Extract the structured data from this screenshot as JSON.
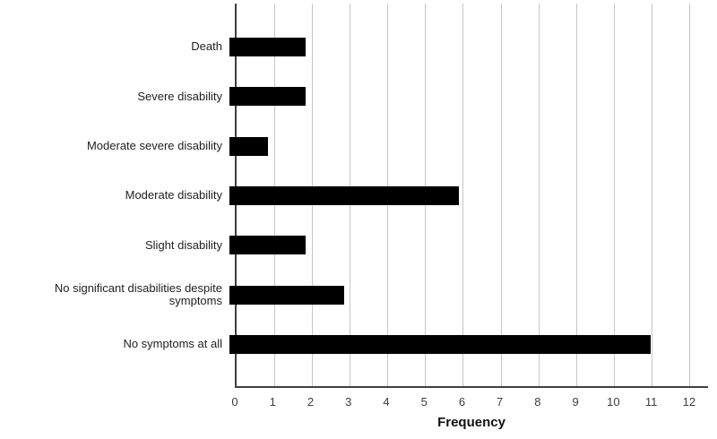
{
  "chart_data": {
    "type": "bar",
    "orientation": "horizontal",
    "title": "",
    "xlabel": "Frequency",
    "ylabel": "",
    "categories": [
      "Death",
      "Severe disability",
      "Moderate severe disability",
      "Moderate disability",
      "Slight disability",
      "No significant disabilities despite symptoms",
      "No symptoms at all"
    ],
    "values": [
      2,
      2,
      1,
      6,
      2,
      3,
      11
    ],
    "xticks": [
      0,
      1,
      2,
      3,
      4,
      5,
      6,
      7,
      8,
      9,
      10,
      11,
      12
    ],
    "xlim": [
      0,
      12.5
    ],
    "grid": "vertical-gridlines-at-each-tick",
    "legend": "none",
    "colors": {
      "bar": "#000000",
      "gridline": "#c6c6c6",
      "axis": "#3f3f3f",
      "tick_text": "#3d3d3d",
      "label_text": "#1f1f1f",
      "background": "#ffffff"
    }
  }
}
